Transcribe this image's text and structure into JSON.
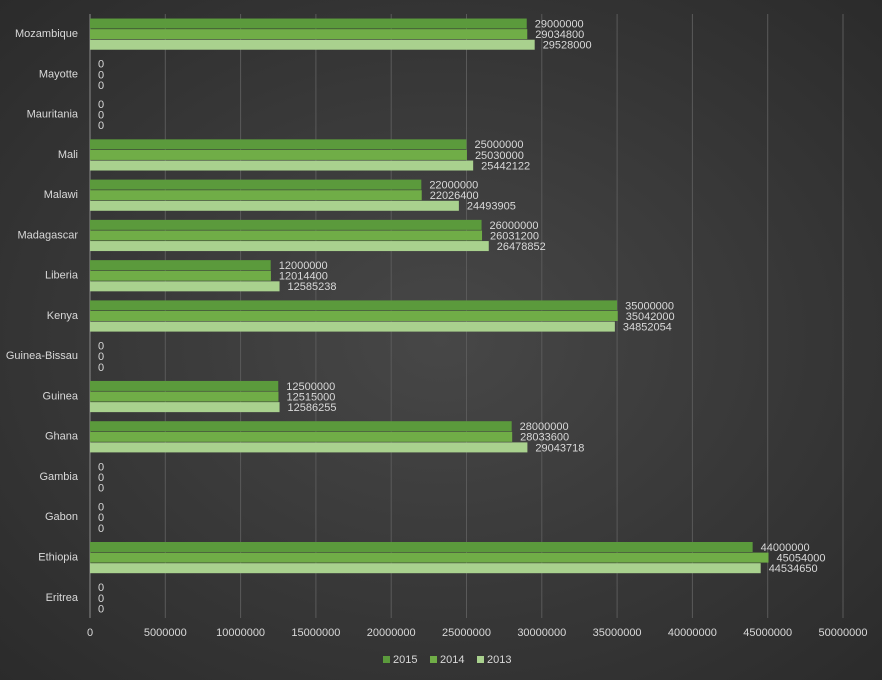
{
  "chart_data": {
    "type": "hbar",
    "categories": [
      "Mozambique",
      "Mayotte",
      "Mauritania",
      "Mali",
      "Malawi",
      "Madagascar",
      "Liberia",
      "Kenya",
      "Guinea-Bissau",
      "Guinea",
      "Ghana",
      "Gambia",
      "Gabon",
      "Ethiopia",
      "Eritrea"
    ],
    "series": [
      {
        "name": "2015",
        "color": "#5b9a3c",
        "values": [
          29000000,
          0,
          0,
          25000000,
          22000000,
          26000000,
          12000000,
          35000000,
          0,
          12500000,
          28000000,
          0,
          0,
          44000000,
          0
        ]
      },
      {
        "name": "2014",
        "color": "#70ad47",
        "values": [
          29034800,
          0,
          0,
          25030000,
          22026400,
          26031200,
          12014400,
          35042000,
          0,
          12515000,
          28033600,
          0,
          0,
          45054000,
          0
        ]
      },
      {
        "name": "2013",
        "color": "#a9d18e",
        "values": [
          29528000,
          0,
          0,
          25442122,
          24493905,
          26478852,
          12585238,
          34852054,
          0,
          12586255,
          29043718,
          0,
          0,
          44534650,
          0
        ]
      }
    ],
    "xlim": [
      0,
      50000000
    ],
    "xticks": [
      0,
      5000000,
      10000000,
      15000000,
      20000000,
      25000000,
      30000000,
      35000000,
      40000000,
      45000000,
      50000000
    ],
    "grid": true,
    "legend": "bottom"
  }
}
